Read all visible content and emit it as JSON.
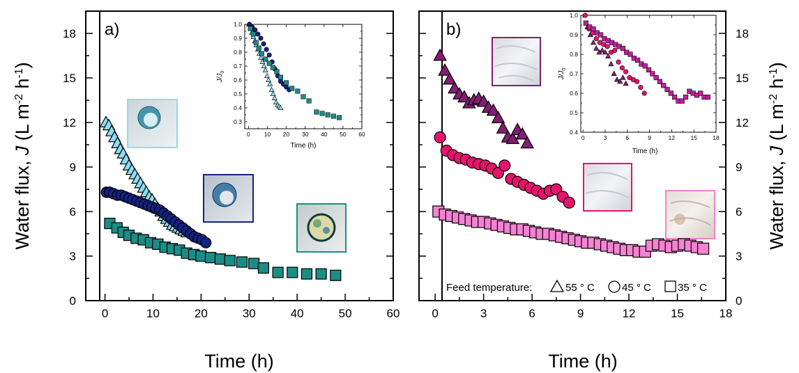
{
  "chart_data": [
    {
      "type": "scatter",
      "panel_label": "a)",
      "xlabel": "Time (h)",
      "ylabel": "Water flux, J (L m-2 h-1)",
      "xlim": [
        -4,
        60
      ],
      "ylim": [
        0,
        19.5
      ],
      "xticks": [
        "0",
        "10",
        "20",
        "30",
        "40",
        "50",
        "60"
      ],
      "yticks": [
        "0",
        "3",
        "6",
        "9",
        "12",
        "15",
        "18"
      ],
      "series": [
        {
          "marker": "triangle",
          "color": "#8fdaf0",
          "x": [
            0.2,
            0.8,
            1.4,
            2.0,
            2.6,
            3.2,
            3.8,
            4.4,
            5.0,
            5.6,
            6.2,
            6.8,
            7.4,
            8.0,
            8.6,
            9.2,
            9.8,
            10.4,
            11.0,
            11.6,
            12.2,
            12.8,
            13.4,
            14.0,
            14.6,
            15.2,
            15.8,
            16.4,
            17.0
          ],
          "y": [
            12.0,
            11.8,
            11.4,
            11.0,
            10.6,
            10.2,
            9.9,
            9.5,
            9.1,
            8.8,
            8.5,
            8.2,
            7.9,
            7.6,
            7.3,
            7.0,
            6.8,
            6.5,
            6.2,
            6.0,
            5.7,
            5.5,
            5.3,
            5.1,
            5.0,
            4.9,
            4.8,
            4.7,
            4.6
          ]
        },
        {
          "marker": "circle",
          "color": "#142283",
          "x": [
            0.3,
            1.0,
            1.8,
            2.6,
            3.4,
            4.2,
            5.0,
            5.8,
            6.6,
            7.4,
            8.2,
            9.0,
            9.8,
            10.6,
            11.4,
            12.2,
            13.0,
            13.8,
            14.6,
            15.4,
            16.2,
            17.0,
            17.8,
            18.6,
            19.4,
            20.2,
            21.0
          ],
          "y": [
            7.3,
            7.3,
            7.2,
            7.1,
            7.1,
            7.0,
            6.9,
            6.8,
            6.7,
            6.6,
            6.5,
            6.4,
            6.3,
            6.2,
            6.1,
            5.9,
            5.7,
            5.5,
            5.3,
            5.1,
            4.9,
            4.7,
            4.5,
            4.3,
            4.2,
            4.1,
            3.9
          ]
        },
        {
          "marker": "square",
          "color": "#1b8d87",
          "x": [
            1.0,
            2.5,
            3.8,
            5.0,
            6.5,
            8.0,
            9.5,
            11.0,
            12.5,
            14.0,
            15.5,
            17.0,
            18.5,
            20.0,
            22.0,
            24.0,
            26.0,
            28.5,
            31.0,
            33.0,
            36.0,
            39.0,
            42.0,
            45.0,
            48.0
          ],
          "y": [
            5.2,
            4.9,
            4.6,
            4.4,
            4.2,
            4.1,
            3.9,
            3.8,
            3.6,
            3.5,
            3.4,
            3.2,
            3.1,
            3.0,
            2.9,
            2.8,
            2.7,
            2.6,
            2.5,
            2.2,
            1.9,
            1.9,
            1.8,
            1.8,
            1.7
          ]
        }
      ],
      "inset": {
        "type": "scatter",
        "xlabel": "Time (h)",
        "ylabel": "J/J0",
        "xlim": [
          -2,
          60
        ],
        "ylim": [
          0.25,
          1.0
        ],
        "xticks": [
          "0",
          "10",
          "20",
          "30",
          "40",
          "50",
          "60"
        ],
        "yticks": [
          "0.3",
          "0.4",
          "0.5",
          "0.6",
          "0.7",
          "0.8",
          "0.9",
          "1.0"
        ],
        "series": [
          {
            "marker": "triangle",
            "color": "#8fdaf0",
            "x": [
              0.2,
              1.0,
              1.8,
              2.6,
              3.4,
              4.2,
              5.0,
              5.8,
              6.6,
              7.4,
              8.2,
              9.0,
              9.8,
              10.6,
              11.4,
              12.2,
              13.0,
              13.8,
              14.6,
              15.4,
              16.2,
              17.0
            ],
            "y": [
              1.0,
              0.97,
              0.94,
              0.91,
              0.88,
              0.85,
              0.82,
              0.79,
              0.76,
              0.73,
              0.7,
              0.67,
              0.63,
              0.6,
              0.57,
              0.53,
              0.5,
              0.47,
              0.44,
              0.42,
              0.41,
              0.4
            ]
          },
          {
            "marker": "circle",
            "color": "#142283",
            "x": [
              0.5,
              2.0,
              3.5,
              5.0,
              6.5,
              8.0,
              9.5,
              11.0,
              12.5,
              14.0,
              15.5,
              17.0,
              18.5,
              20.0,
              21.5
            ],
            "y": [
              1.0,
              0.98,
              0.96,
              0.93,
              0.9,
              0.86,
              0.82,
              0.78,
              0.73,
              0.68,
              0.63,
              0.59,
              0.57,
              0.55,
              0.53
            ]
          },
          {
            "marker": "square",
            "color": "#1b8d87",
            "x": [
              1.0,
              2.5,
              4.0,
              5.5,
              7.0,
              9.0,
              11.0,
              13.0,
              15.0,
              17.0,
              20.0,
              23.0,
              26.0,
              29.0,
              32.0,
              36.0,
              39.0,
              42.0,
              45.0,
              48.0
            ],
            "y": [
              0.97,
              0.93,
              0.87,
              0.83,
              0.79,
              0.75,
              0.72,
              0.69,
              0.66,
              0.62,
              0.58,
              0.54,
              0.52,
              0.48,
              0.45,
              0.37,
              0.36,
              0.35,
              0.34,
              0.33
            ]
          }
        ]
      }
    },
    {
      "type": "scatter",
      "panel_label": "b)",
      "xlabel": "Time (h)",
      "ylabel": "Water flux, J (L m-2 h-1)",
      "xlim": [
        -1,
        18
      ],
      "ylim": [
        0,
        19.5
      ],
      "xticks": [
        "0",
        "3",
        "6",
        "9",
        "12",
        "15",
        "18"
      ],
      "yticks": [
        "0",
        "3",
        "6",
        "9",
        "12",
        "15",
        "18"
      ],
      "legend": {
        "title": "Feed temperature:",
        "entries": [
          {
            "marker": "triangle",
            "label": "55 ° C"
          },
          {
            "marker": "circle",
            "label": "45 ° C"
          },
          {
            "marker": "square",
            "label": "35 ° C"
          }
        ]
      },
      "series": [
        {
          "marker": "triangle",
          "color": "#841d73",
          "x": [
            0.3,
            0.6,
            0.9,
            1.2,
            1.5,
            1.8,
            2.1,
            2.4,
            2.7,
            3.0,
            3.3,
            3.6,
            3.9,
            4.2,
            4.5,
            4.8,
            5.1,
            5.4,
            5.7
          ],
          "y": [
            16.5,
            15.5,
            14.9,
            14.3,
            13.9,
            13.7,
            13.3,
            13.5,
            13.6,
            13.4,
            13.0,
            12.8,
            12.3,
            11.6,
            11.0,
            10.9,
            11.5,
            11.2,
            10.6
          ]
        },
        {
          "marker": "circle",
          "color": "#e7136d",
          "x": [
            0.3,
            0.7,
            1.1,
            1.5,
            1.9,
            2.3,
            2.7,
            3.1,
            3.5,
            3.9,
            4.3,
            4.7,
            5.1,
            5.5,
            5.9,
            6.3,
            6.7,
            7.1,
            7.5,
            7.9,
            8.3
          ],
          "y": [
            11.0,
            10.1,
            9.8,
            9.6,
            9.5,
            9.3,
            9.2,
            9.1,
            8.9,
            8.6,
            9.1,
            8.2,
            8.0,
            7.8,
            7.6,
            7.4,
            7.2,
            7.4,
            7.5,
            7.0,
            6.6
          ]
        },
        {
          "marker": "square",
          "color": "#f582d2",
          "x": [
            0.2,
            0.6,
            1.0,
            1.4,
            1.8,
            2.2,
            2.6,
            3.0,
            3.4,
            3.8,
            4.2,
            4.6,
            5.0,
            5.4,
            5.8,
            6.2,
            6.6,
            7.0,
            7.4,
            7.8,
            8.2,
            8.6,
            9.0,
            9.4,
            9.8,
            10.2,
            10.6,
            11.0,
            11.4,
            11.8,
            12.2,
            12.6,
            13.0,
            13.4,
            13.8,
            14.2,
            14.6,
            15.0,
            15.4,
            15.8,
            16.2,
            16.6
          ],
          "y": [
            6.0,
            5.8,
            5.7,
            5.6,
            5.5,
            5.4,
            5.3,
            5.3,
            5.2,
            5.1,
            5.0,
            4.9,
            4.8,
            4.8,
            4.7,
            4.6,
            4.5,
            4.5,
            4.4,
            4.3,
            4.2,
            4.1,
            4.0,
            3.9,
            3.9,
            3.8,
            3.7,
            3.6,
            3.5,
            3.4,
            3.4,
            3.3,
            3.3,
            3.7,
            3.8,
            3.7,
            3.6,
            3.7,
            3.8,
            3.7,
            3.6,
            3.5
          ]
        }
      ],
      "inset": {
        "type": "scatter",
        "xlabel": "Time (h)",
        "ylabel": "J/J0",
        "xlim": [
          -0.3,
          18
        ],
        "ylim": [
          0.4,
          1.0
        ],
        "xticks": [
          "0",
          "3",
          "6",
          "9",
          "12",
          "15",
          "18"
        ],
        "yticks": [
          "0.4",
          "0.5",
          "0.6",
          "0.7",
          "0.8",
          "0.9",
          "1.0"
        ],
        "series": [
          {
            "marker": "triangle",
            "color": "#841d73",
            "x": [
              0.6,
              1.0,
              1.4,
              1.8,
              2.2,
              2.6,
              3.0,
              3.4,
              3.8,
              4.2,
              4.6,
              5.0,
              5.4,
              5.8
            ],
            "y": [
              0.94,
              0.9,
              0.86,
              0.83,
              0.81,
              0.82,
              0.81,
              0.79,
              0.75,
              0.7,
              0.67,
              0.66,
              0.68,
              0.65
            ]
          },
          {
            "marker": "circle",
            "color": "#e7136d",
            "x": [
              0.3,
              0.8,
              1.3,
              1.8,
              2.3,
              2.8,
              3.3,
              3.8,
              4.3,
              4.8,
              5.3,
              5.8,
              6.3,
              6.8,
              7.3,
              7.8,
              8.3
            ],
            "y": [
              1.0,
              0.93,
              0.91,
              0.88,
              0.86,
              0.85,
              0.84,
              0.81,
              0.82,
              0.76,
              0.73,
              0.71,
              0.68,
              0.67,
              0.66,
              0.63,
              0.6
            ]
          },
          {
            "marker": "square",
            "color": "#c0209c",
            "x": [
              0.4,
              0.9,
              1.4,
              1.9,
              2.4,
              2.9,
              3.4,
              3.9,
              4.4,
              4.9,
              5.4,
              5.9,
              6.4,
              6.9,
              7.4,
              7.9,
              8.4,
              8.9,
              9.4,
              9.9,
              10.4,
              10.9,
              11.4,
              11.9,
              12.4,
              12.9,
              13.4,
              13.9,
              14.4,
              14.9,
              15.4,
              15.9,
              16.4,
              16.9
            ],
            "y": [
              0.96,
              0.94,
              0.93,
              0.91,
              0.9,
              0.88,
              0.87,
              0.86,
              0.85,
              0.84,
              0.83,
              0.81,
              0.8,
              0.78,
              0.77,
              0.75,
              0.74,
              0.72,
              0.7,
              0.68,
              0.66,
              0.64,
              0.62,
              0.6,
              0.58,
              0.56,
              0.56,
              0.58,
              0.61,
              0.6,
              0.59,
              0.6,
              0.58,
              0.58
            ]
          }
        ]
      }
    }
  ]
}
